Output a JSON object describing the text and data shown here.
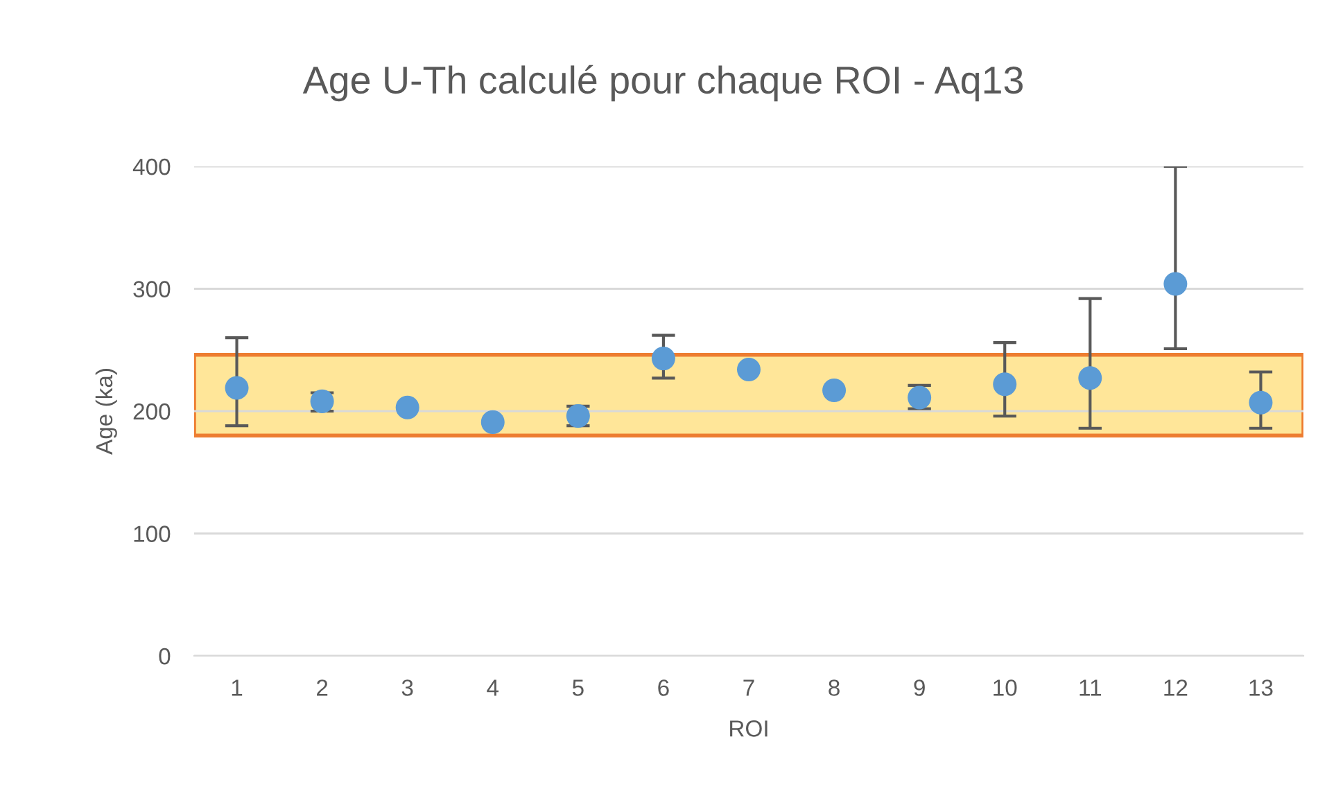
{
  "chart_data": {
    "type": "scatter",
    "title": "Age U-Th calculé pour chaque ROI - Aq13",
    "xlabel": "ROI",
    "ylabel": "Age (ka)",
    "categories": [
      "1",
      "2",
      "3",
      "4",
      "5",
      "6",
      "7",
      "8",
      "9",
      "10",
      "11",
      "12",
      "13"
    ],
    "series": [
      {
        "color": "#5b9bd5",
        "values": [
          219,
          208,
          203,
          191,
          196,
          243,
          234,
          217,
          211,
          222,
          227,
          304,
          207
        ],
        "errors": [
          [
            188,
            260
          ],
          [
            200,
            215
          ],
          null,
          null,
          [
            188,
            204
          ],
          [
            227,
            262
          ],
          null,
          null,
          [
            202,
            221
          ],
          [
            196,
            256
          ],
          [
            186,
            292
          ],
          [
            251,
            400
          ],
          [
            186,
            232
          ]
        ]
      }
    ],
    "ylim": [
      0,
      400
    ],
    "yticks": [
      0,
      100,
      200,
      300,
      400
    ],
    "grid": "y",
    "marker": "circle",
    "legend": false,
    "bands": [
      {
        "axis": "y",
        "from": 180,
        "to": 246,
        "color": "#ffe699"
      }
    ]
  }
}
